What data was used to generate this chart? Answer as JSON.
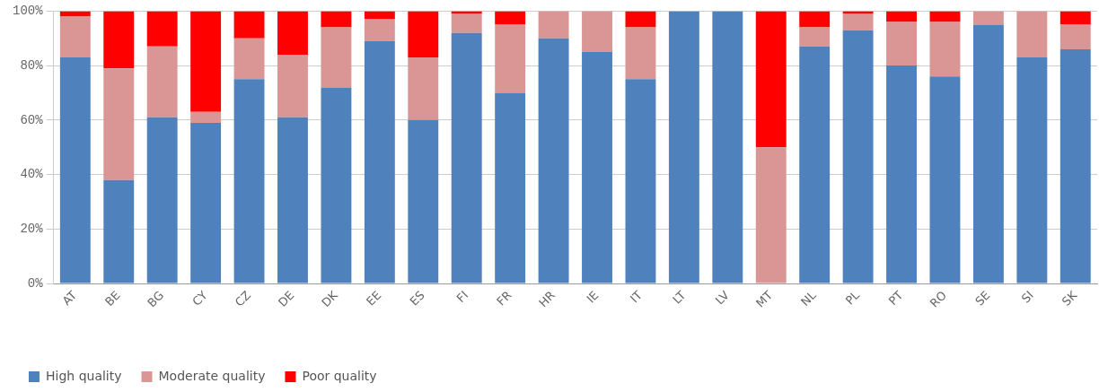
{
  "chart_data": {
    "type": "bar",
    "stacked": true,
    "categories": [
      "AT",
      "BE",
      "BG",
      "CY",
      "CZ",
      "DE",
      "DK",
      "EE",
      "ES",
      "FI",
      "FR",
      "HR",
      "IE",
      "IT",
      "LT",
      "LV",
      "MT",
      "NL",
      "PL",
      "PT",
      "RO",
      "SE",
      "SI",
      "SK"
    ],
    "series": [
      {
        "name": "High quality",
        "color": "#4f81bd",
        "values": [
          83,
          38,
          61,
          59,
          75,
          61,
          72,
          89,
          60,
          92,
          70,
          90,
          85,
          75,
          100,
          100,
          0,
          87,
          93,
          80,
          76,
          95,
          83,
          86
        ]
      },
      {
        "name": "Moderate quality",
        "color": "#d99694",
        "values": [
          15,
          41,
          26,
          4,
          15,
          23,
          22,
          8,
          23,
          7,
          25,
          10,
          15,
          19,
          0,
          0,
          50,
          7,
          6,
          16,
          20,
          5,
          17,
          9
        ]
      },
      {
        "name": "Poor quality",
        "color": "#ff0000",
        "values": [
          2,
          21,
          13,
          37,
          10,
          16,
          6,
          3,
          17,
          1,
          5,
          0,
          0,
          6,
          0,
          0,
          50,
          6,
          1,
          4,
          4,
          0,
          0,
          5
        ]
      }
    ],
    "ylim": [
      0,
      100
    ],
    "yticks": [
      {
        "value": 0,
        "label": "0%"
      },
      {
        "value": 20,
        "label": "20%"
      },
      {
        "value": 40,
        "label": "40%"
      },
      {
        "value": 60,
        "label": "60%"
      },
      {
        "value": 80,
        "label": "80%"
      },
      {
        "value": 100,
        "label": "100%"
      }
    ],
    "grid": "y",
    "legend": "bottom left"
  }
}
